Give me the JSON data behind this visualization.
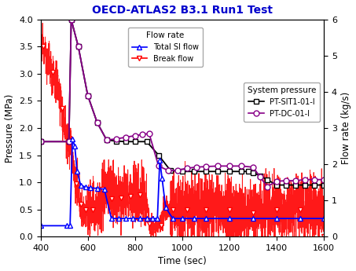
{
  "title": "OECD-ATLAS2 B3.1 Run1 Test",
  "xlabel": "Time (sec)",
  "ylabel_left": "Pressure (MPa)",
  "ylabel_right": "Flow rate (kg/s)",
  "xlim": [
    400,
    1600
  ],
  "ylim_left": [
    0.0,
    4.0
  ],
  "ylim_right": [
    0.0,
    6.0
  ],
  "xticks": [
    400,
    600,
    800,
    1000,
    1200,
    1400,
    1600
  ],
  "yticks_left": [
    0.0,
    0.5,
    1.0,
    1.5,
    2.0,
    2.5,
    3.0,
    3.5,
    4.0
  ],
  "yticks_right": [
    0,
    1,
    2,
    3,
    4,
    5,
    6
  ],
  "title_color": "#0000cc",
  "bg_color": "#ffffff",
  "legend1_title": "Flow rate",
  "legend2_title": "System pressure",
  "color_sit": "#000000",
  "color_dc": "#880088",
  "color_si": "#0000ff",
  "color_break": "#ff0000"
}
